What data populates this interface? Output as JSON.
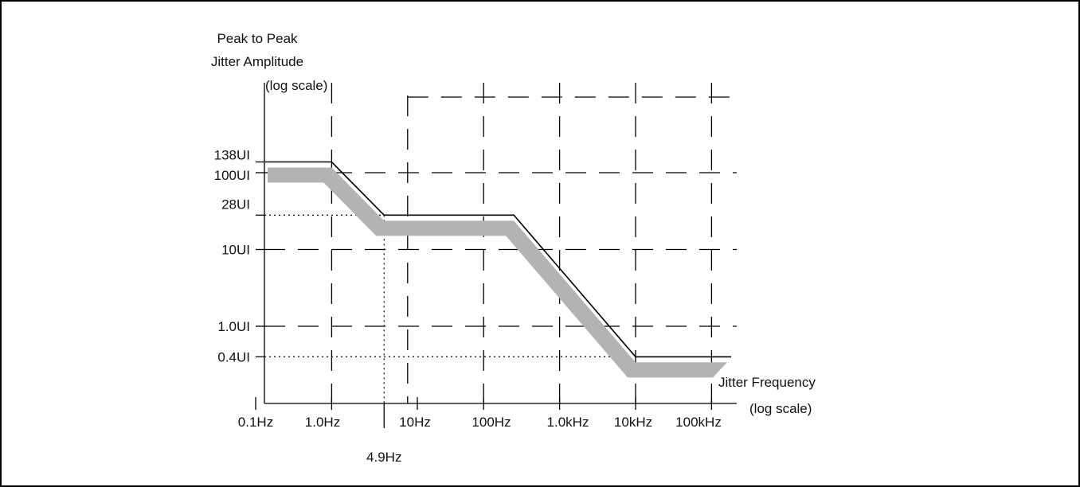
{
  "chart_data": {
    "type": "line",
    "title": "",
    "ylabel": [
      "Peak to Peak",
      "Jitter Amplitude",
      "(log scale)"
    ],
    "xlabel": [
      "Jitter Frequency",
      "(log scale)"
    ],
    "x_scale": "log",
    "y_scale": "log",
    "xlim": [
      0.1,
      300000
    ],
    "ylim": [
      0.08,
      1000
    ],
    "x_ticks": [
      {
        "value": 0.1,
        "label": "0.1Hz"
      },
      {
        "value": 1,
        "label": "1.0Hz"
      },
      {
        "value": 10,
        "label": "10Hz"
      },
      {
        "value": 100,
        "label": "100Hz"
      },
      {
        "value": 1000,
        "label": "1.0kHz"
      },
      {
        "value": 10000,
        "label": "10kHz"
      },
      {
        "value": 100000,
        "label": "100kHz"
      }
    ],
    "x_marker": {
      "value": 4.9,
      "label": "4.9Hz"
    },
    "y_ticks": [
      {
        "value": 138,
        "label": "138UI"
      },
      {
        "value": 100,
        "label": "100UI"
      },
      {
        "value": 28,
        "label": "28UI"
      },
      {
        "value": 10,
        "label": "10UI"
      },
      {
        "value": 1.0,
        "label": "1.0UI"
      },
      {
        "value": 0.4,
        "label": "0.4UI"
      }
    ],
    "grid": true,
    "series": [
      {
        "x": [
          0.1,
          1,
          4.9,
          250,
          10000,
          200000
        ],
        "y": [
          138,
          138,
          28,
          28,
          0.4,
          0.4
        ]
      }
    ],
    "band_color": "#b3b3b3",
    "line_color": "#000000"
  }
}
